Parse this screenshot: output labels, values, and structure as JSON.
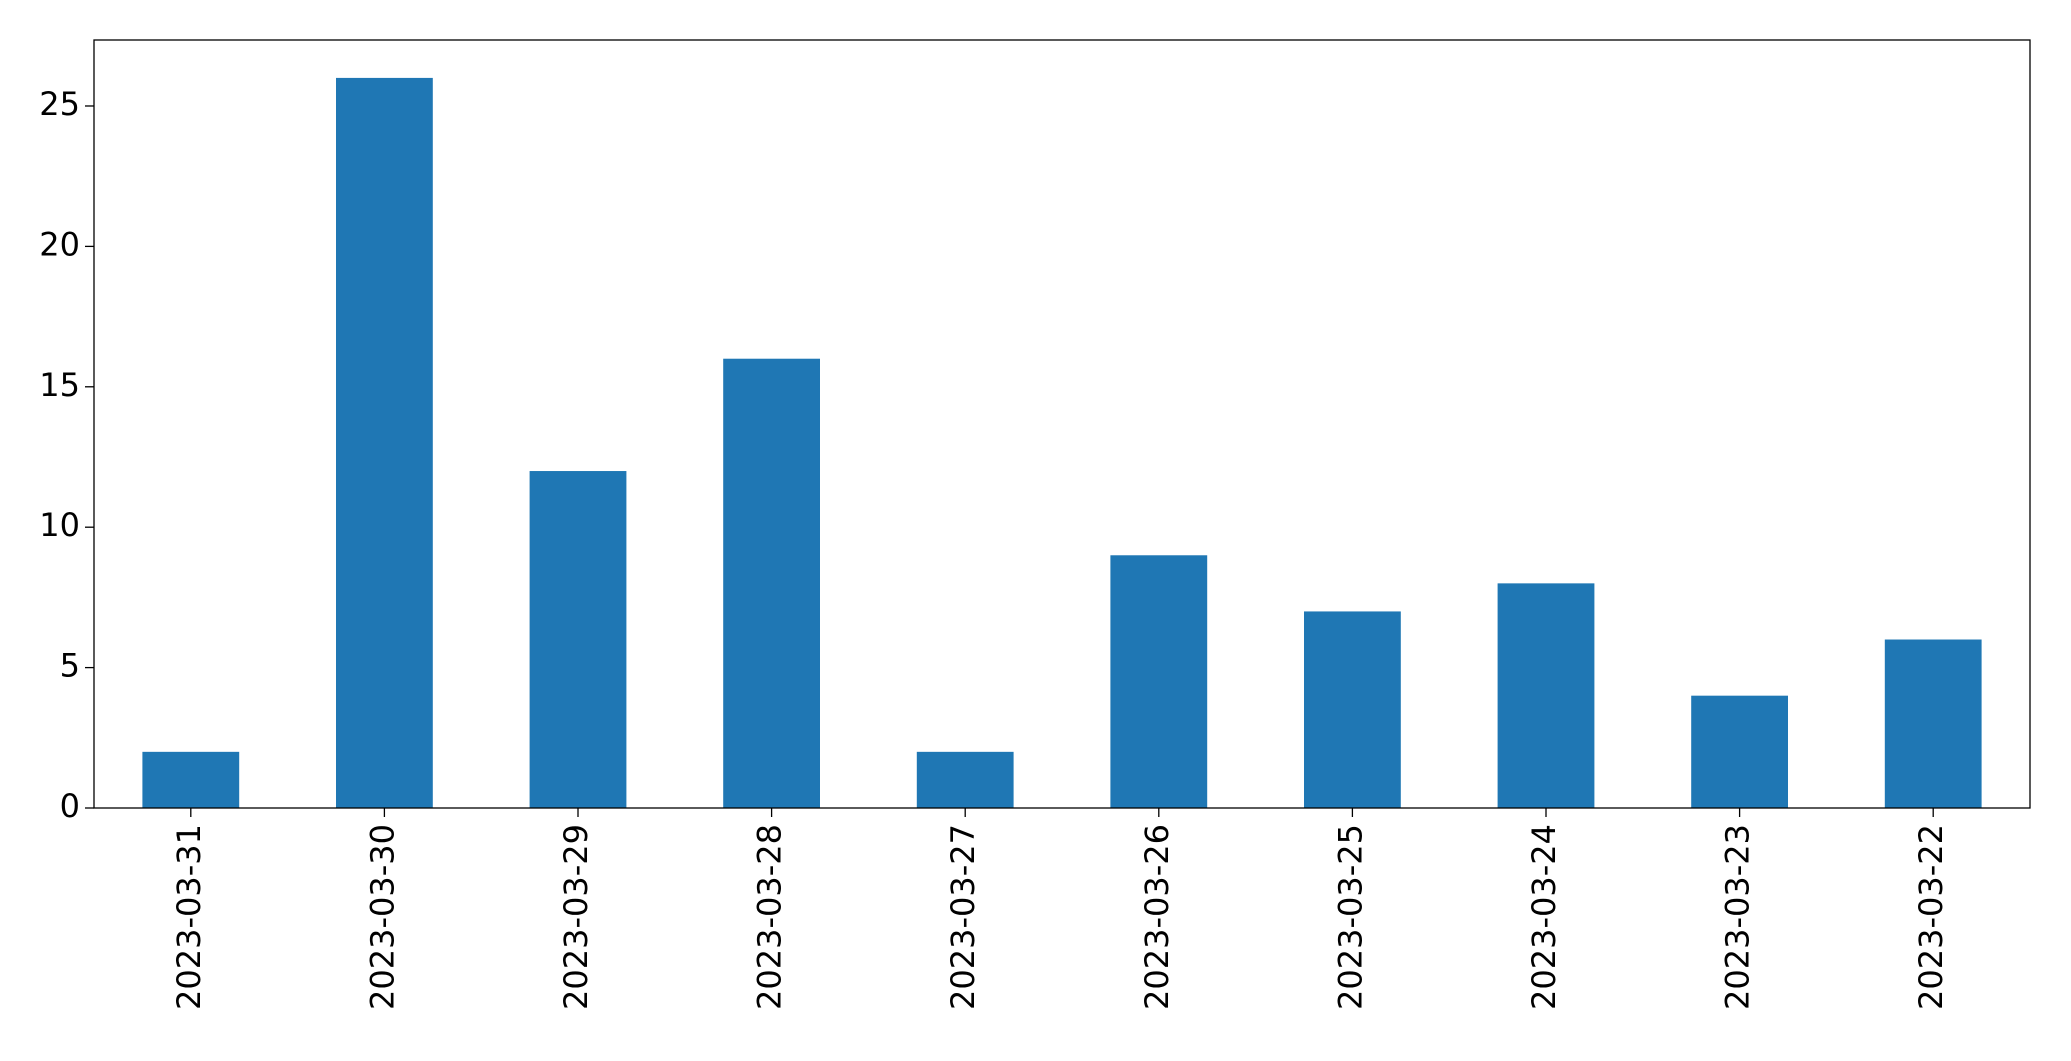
{
  "chart_data": {
    "type": "bar",
    "categories": [
      "2023-03-31",
      "2023-03-30",
      "2023-03-29",
      "2023-03-28",
      "2023-03-27",
      "2023-03-26",
      "2023-03-25",
      "2023-03-24",
      "2023-03-23",
      "2023-03-22"
    ],
    "values": [
      2,
      26,
      12,
      16,
      2,
      9,
      7,
      8,
      4,
      6
    ],
    "color": "#1f77b4",
    "ylim": [
      0,
      27.35
    ],
    "yticks": [
      0,
      5,
      10,
      15,
      20,
      25
    ],
    "grid": false
  }
}
